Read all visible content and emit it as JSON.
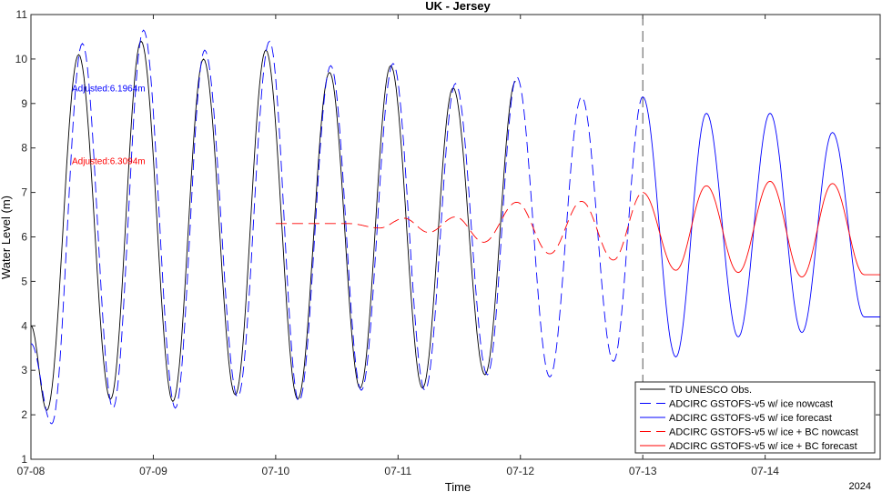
{
  "chart_data": {
    "type": "line",
    "title": "UK - Jersey",
    "xlabel": "Time",
    "ylabel": "Water Level (m)",
    "year_label": "2024",
    "x_ticks": [
      "07-08",
      "07-09",
      "07-10",
      "07-11",
      "07-12",
      "07-13",
      "07-14"
    ],
    "x_range_days": [
      0,
      6.94
    ],
    "ylim": [
      1,
      11
    ],
    "y_ticks": [
      1,
      2,
      3,
      4,
      5,
      6,
      7,
      8,
      9,
      10,
      11
    ],
    "grid": false,
    "legend_position": "bottom-right",
    "forecast_start_day": 5,
    "annotations": [
      {
        "text": "Adjusted:6.1964m",
        "color": "#0000ff"
      },
      {
        "text": "Adjusted:6.3094m",
        "color": "#ff0000"
      }
    ],
    "series": [
      {
        "name": "TD UNESCO Obs.",
        "color": "#000000",
        "dash": "solid",
        "points": [
          [
            0,
            4.0
          ],
          [
            0.13,
            2.1
          ],
          [
            0.39,
            10.1
          ],
          [
            0.65,
            2.35
          ],
          [
            0.9,
            10.4
          ],
          [
            1.16,
            2.3
          ],
          [
            1.41,
            10.0
          ],
          [
            1.67,
            2.45
          ],
          [
            1.92,
            10.2
          ],
          [
            2.18,
            2.35
          ],
          [
            2.44,
            9.7
          ],
          [
            2.69,
            2.6
          ],
          [
            2.94,
            9.85
          ],
          [
            3.2,
            2.6
          ],
          [
            3.45,
            9.35
          ],
          [
            3.71,
            2.9
          ],
          [
            3.96,
            9.5
          ]
        ]
      },
      {
        "name": "ADCIRC GSTOFS-v5 w/ ice nowcast",
        "color": "#0000ff",
        "dash": "long",
        "points": [
          [
            0,
            3.6
          ],
          [
            0.17,
            1.8
          ],
          [
            0.42,
            10.35
          ],
          [
            0.67,
            2.15
          ],
          [
            0.92,
            10.65
          ],
          [
            1.18,
            2.15
          ],
          [
            1.42,
            10.2
          ],
          [
            1.69,
            2.4
          ],
          [
            1.95,
            10.4
          ],
          [
            2.19,
            2.3
          ],
          [
            2.45,
            9.85
          ],
          [
            2.7,
            2.55
          ],
          [
            2.96,
            9.9
          ],
          [
            3.22,
            2.55
          ],
          [
            3.47,
            9.45
          ],
          [
            3.73,
            2.9
          ],
          [
            3.97,
            9.6
          ],
          [
            4.24,
            2.85
          ],
          [
            4.5,
            9.15
          ],
          [
            4.76,
            3.2
          ],
          [
            5.0,
            9.15
          ]
        ]
      },
      {
        "name": "ADCIRC GSTOFS-v5 w/ ice forecast",
        "color": "#0000ff",
        "dash": "solid",
        "points": [
          [
            5.0,
            9.15
          ],
          [
            5.27,
            3.3
          ],
          [
            5.52,
            8.78
          ],
          [
            5.78,
            3.75
          ],
          [
            6.04,
            8.78
          ],
          [
            6.3,
            3.85
          ],
          [
            6.55,
            8.35
          ],
          [
            6.81,
            4.2
          ],
          [
            6.94,
            4.2
          ]
        ]
      },
      {
        "name": "ADCIRC GSTOFS-v5 w/ ice + BC nowcast",
        "color": "#ff0000",
        "dash": "long",
        "points": [
          [
            2.0,
            6.3
          ],
          [
            2.3,
            6.3
          ],
          [
            2.6,
            6.3
          ],
          [
            2.85,
            6.2
          ],
          [
            3.05,
            6.42
          ],
          [
            3.25,
            6.1
          ],
          [
            3.47,
            6.45
          ],
          [
            3.7,
            5.88
          ],
          [
            3.97,
            6.78
          ],
          [
            4.24,
            5.62
          ],
          [
            4.5,
            6.8
          ],
          [
            4.76,
            5.48
          ],
          [
            5.0,
            7.0
          ]
        ]
      },
      {
        "name": "ADCIRC GSTOFS-v5 w/ ice + BC forecast",
        "color": "#ff0000",
        "dash": "solid",
        "points": [
          [
            5.0,
            7.0
          ],
          [
            5.27,
            5.25
          ],
          [
            5.52,
            7.15
          ],
          [
            5.78,
            5.2
          ],
          [
            6.04,
            7.25
          ],
          [
            6.3,
            5.1
          ],
          [
            6.55,
            7.2
          ],
          [
            6.81,
            5.15
          ],
          [
            6.94,
            5.15
          ]
        ]
      }
    ]
  }
}
